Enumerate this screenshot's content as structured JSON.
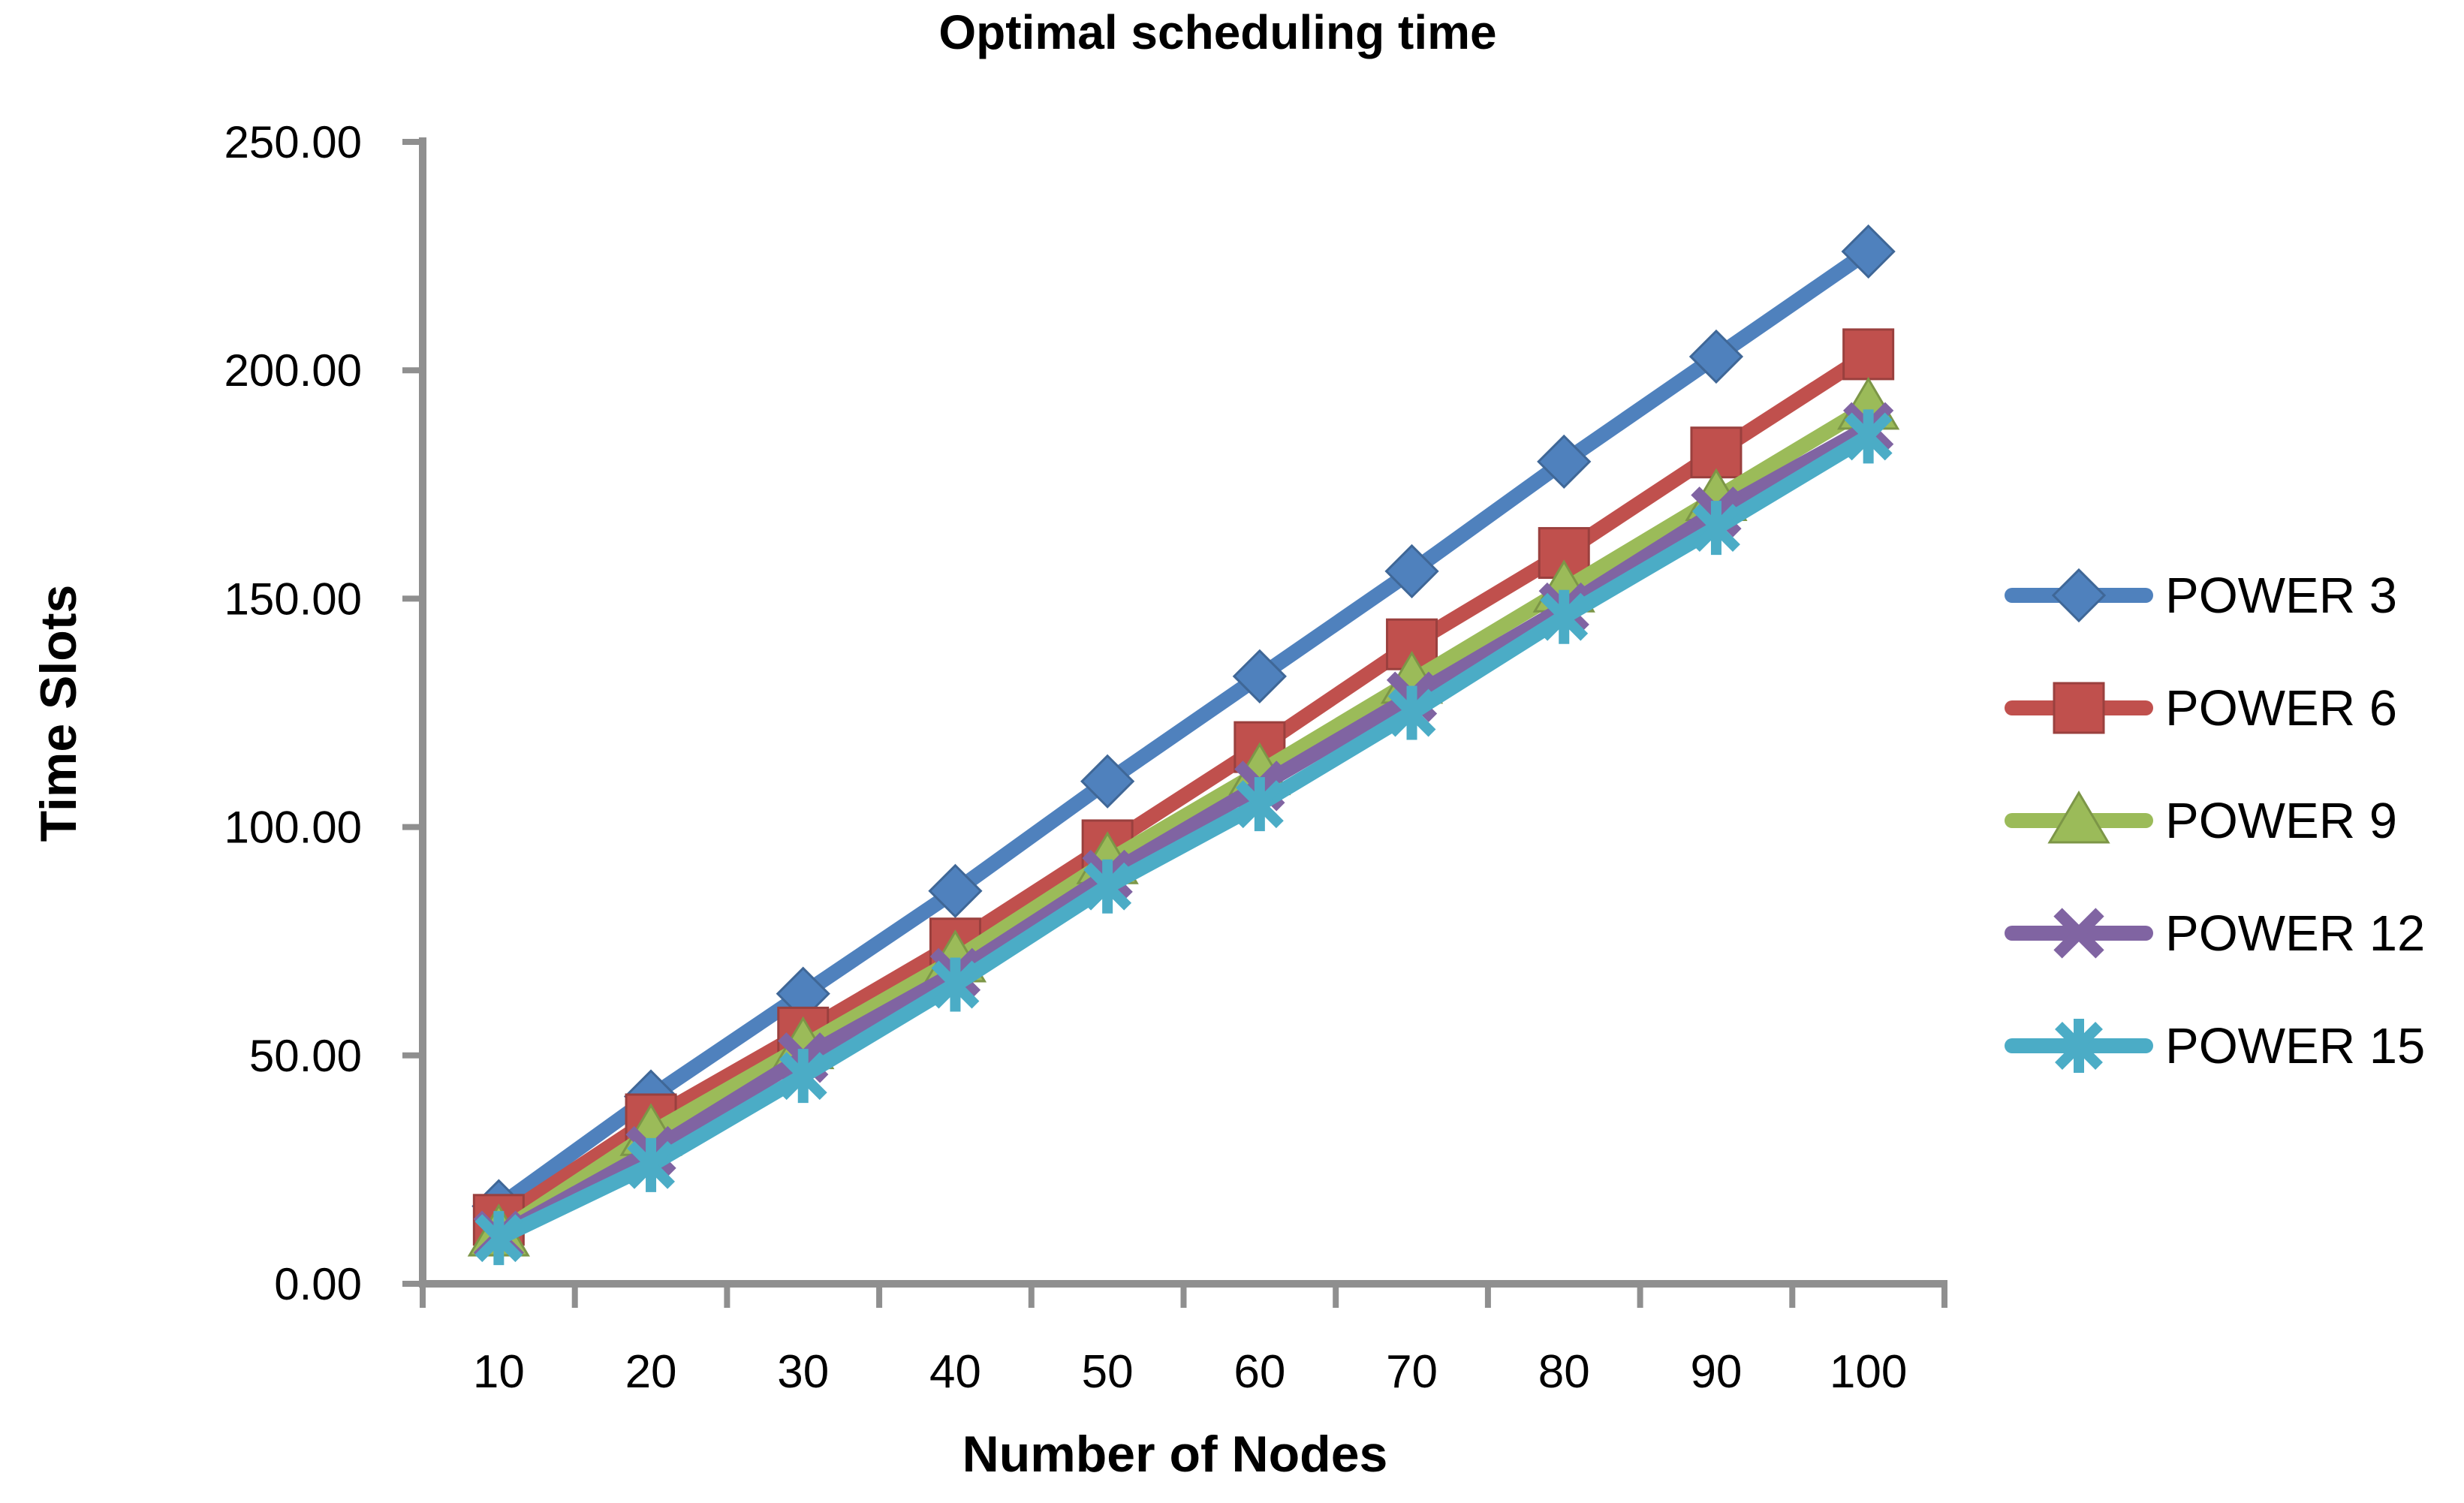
{
  "chart_data": {
    "type": "line",
    "title": "Optimal scheduling time",
    "xlabel": "Number of Nodes",
    "ylabel": "Time Slots",
    "categories": [
      "10",
      "20",
      "30",
      "40",
      "50",
      "60",
      "70",
      "80",
      "90",
      "100"
    ],
    "ylim": [
      0,
      250
    ],
    "ytick_step": 50,
    "ytick_labels": [
      "0.00",
      "50.00",
      "100.00",
      "150.00",
      "200.00",
      "250.00"
    ],
    "grid": false,
    "legend_position": "right",
    "axis_color": "#8F8F8F",
    "text_color": "#000000",
    "series": [
      {
        "name": "POWER 3",
        "color": "#4F81BD",
        "marker": "diamond",
        "values": [
          17,
          41,
          63.5,
          86,
          110,
          133,
          156,
          180,
          203,
          226
        ]
      },
      {
        "name": "POWER 6",
        "color": "#C0504D",
        "marker": "square",
        "values": [
          14,
          36,
          55,
          74.5,
          96,
          117.5,
          140,
          160,
          182,
          203.5
        ]
      },
      {
        "name": "POWER 9",
        "color": "#9BBB59",
        "marker": "triangle",
        "values": [
          11,
          33,
          52,
          71,
          92.5,
          112,
          132,
          152,
          172,
          192
        ]
      },
      {
        "name": "POWER 12",
        "color": "#8064A2",
        "marker": "x",
        "values": [
          10.5,
          29,
          49.5,
          68,
          89.5,
          109,
          128.5,
          148,
          169,
          187.5
        ]
      },
      {
        "name": "POWER 15",
        "color": "#4BACC6",
        "marker": "asterisk",
        "values": [
          10,
          26,
          45.5,
          65.5,
          87,
          105,
          125,
          146,
          165.5,
          185.5
        ]
      }
    ]
  }
}
